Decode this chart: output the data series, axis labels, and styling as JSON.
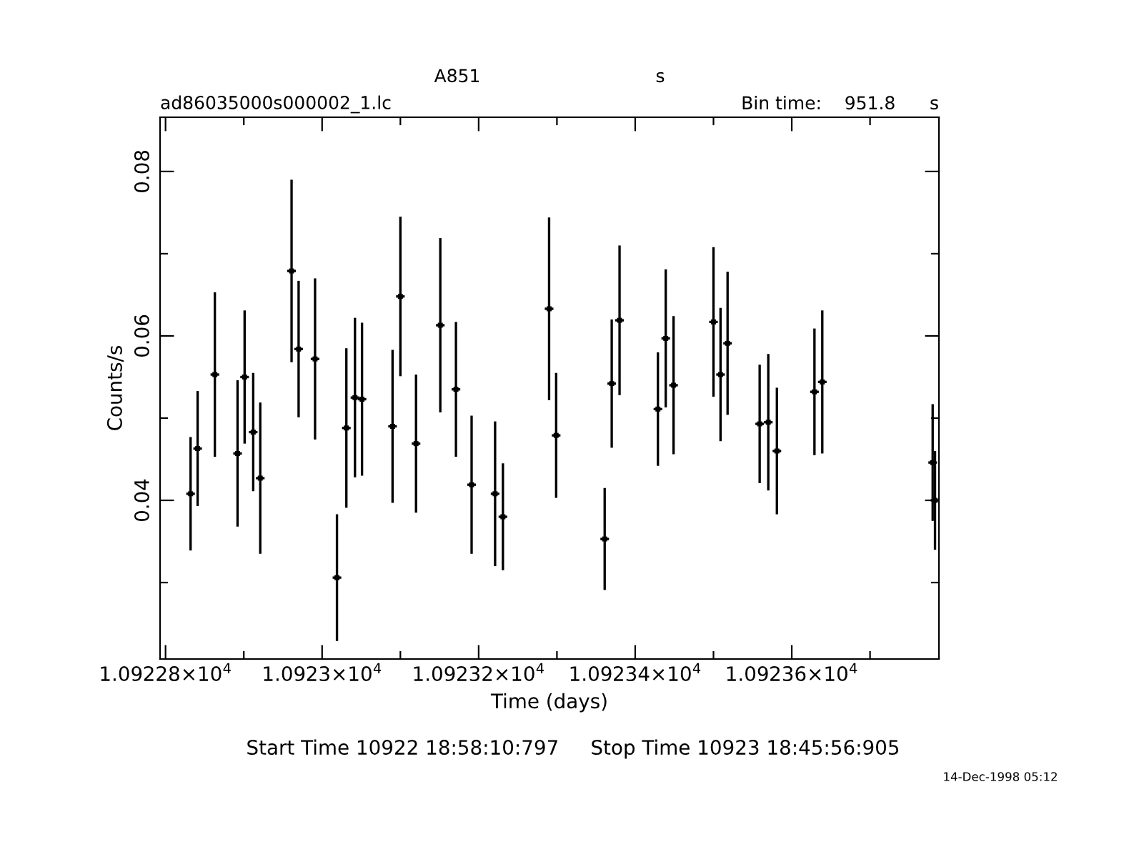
{
  "chart_data": {
    "type": "scatter",
    "title": "A851",
    "subtitle": "ad86035000s000002_1.lc",
    "xlabel": "Time (days)",
    "ylabel": "Counts/s",
    "annotations": [
      "s",
      "Bin time:    951.8      s",
      "Start Time 10922 18:58:10:797     Stop Time 10923 18:45:56:905",
      "14-Dec-1998 05:12"
    ],
    "x": [
      10922.832,
      10922.841,
      10922.863,
      10922.892,
      10922.901,
      10922.912,
      10922.921,
      10922.961,
      10922.97,
      10922.991,
      10923.019,
      10923.031,
      10923.042,
      10923.051,
      10923.09,
      10923.1,
      10923.12,
      10923.151,
      10923.171,
      10923.191,
      10923.221,
      10923.231,
      10923.29,
      10923.299,
      10923.361,
      10923.37,
      10923.38,
      10923.429,
      10923.439,
      10923.449,
      10923.5,
      10923.509,
      10923.518,
      10923.559,
      10923.57,
      10923.581,
      10923.629,
      10923.639,
      10923.78,
      10923.783
    ],
    "series": [
      {
        "color": "#000000",
        "marker": "square",
        "xerrors": [
          0.0055,
          0.0055,
          0.0055,
          0.0055,
          0.0055,
          0.0055,
          0.0055,
          0.0055,
          0.0055,
          0.0055,
          0.0055,
          0.0055,
          0.0055,
          0.0055,
          0.0055,
          0.0055,
          0.0055,
          0.0055,
          0.0055,
          0.0055,
          0.0055,
          0.0055,
          0.0055,
          0.0055,
          0.0055,
          0.0055,
          0.0055,
          0.0055,
          0.0055,
          0.0055,
          0.0055,
          0.0055,
          0.0055,
          0.0055,
          0.0055,
          0.0055,
          0.0055,
          0.0055,
          0.0055,
          0.0055
        ],
        "values": [
          0.0408,
          0.0463,
          0.0553,
          0.0457,
          0.055,
          0.0483,
          0.0427,
          0.0679,
          0.0584,
          0.0572,
          0.0306,
          0.0488,
          0.0525,
          0.0523,
          0.049,
          0.0648,
          0.0469,
          0.0613,
          0.0535,
          0.0419,
          0.0408,
          0.038,
          0.0633,
          0.0479,
          0.0353,
          0.0542,
          0.0619,
          0.0511,
          0.0597,
          0.054,
          0.0617,
          0.0553,
          0.0591,
          0.0493,
          0.0495,
          0.046,
          0.0532,
          0.0544,
          0.0446,
          0.04
        ],
        "errors": [
          0.0069,
          0.007,
          0.01,
          0.0089,
          0.0081,
          0.0072,
          0.0092,
          0.0111,
          0.0083,
          0.0098,
          0.0077,
          0.0097,
          0.0097,
          0.0093,
          0.0093,
          0.0097,
          0.0084,
          0.0106,
          0.0082,
          0.0084,
          0.0088,
          0.0065,
          0.0111,
          0.0076,
          0.0062,
          0.0078,
          0.0091,
          0.0069,
          0.0084,
          0.0084,
          0.0091,
          0.0081,
          0.0087,
          0.0072,
          0.0083,
          0.0077,
          0.0077,
          0.0087,
          0.0071,
          0.006
        ]
      }
    ],
    "xlim": [
      10922.793,
      10923.788
    ],
    "ylim": [
      0.0207,
      0.0866
    ],
    "xticks": [
      {
        "value": 10922.8,
        "label": "1.09228×10$^{4}$"
      },
      {
        "value": 10922.9,
        "label": null
      },
      {
        "value": 10923.0,
        "label": "1.0923×10$^{4}$"
      },
      {
        "value": 10923.1,
        "label": null
      },
      {
        "value": 10923.2,
        "label": "1.09232×10$^{4}$"
      },
      {
        "value": 10923.3,
        "label": null
      },
      {
        "value": 10923.4,
        "label": "1.09234×10$^{4}$"
      },
      {
        "value": 10923.5,
        "label": null
      },
      {
        "value": 10923.6,
        "label": "1.09236×10$^{4}$"
      },
      {
        "value": 10923.7,
        "label": null
      }
    ],
    "yticks": [
      {
        "value": 0.03,
        "label": null
      },
      0.04,
      {
        "value": 0.05,
        "label": null
      },
      0.06,
      {
        "value": 0.07,
        "label": null
      },
      0.08
    ],
    "grid": false,
    "legend": false
  }
}
